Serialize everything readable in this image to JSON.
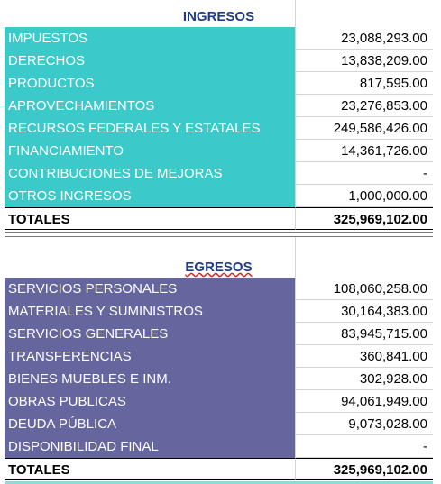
{
  "ingresos": {
    "title": "INGRESOS",
    "rows": [
      [
        "IMPUESTOS",
        "23,088,293.00"
      ],
      [
        "DERECHOS",
        "13,838,209.00"
      ],
      [
        "PRODUCTOS",
        "817,595.00"
      ],
      [
        "APROVECHAMIENTOS",
        "23,276,853.00"
      ],
      [
        "RECURSOS FEDERALES Y ESTATALES",
        "249,586,426.00"
      ],
      [
        "FINANCIAMIENTO",
        "14,361,726.00"
      ],
      [
        "CONTRIBUCIONES DE MEJORAS",
        "-"
      ],
      [
        "OTROS INGRESOS",
        "1,000,000.00"
      ]
    ],
    "total": [
      "TOTALES",
      "325,969,102.00"
    ]
  },
  "egresos": {
    "title": "EGRESOS",
    "rows": [
      [
        "SERVICIOS PERSONALES",
        "108,060,258.00"
      ],
      [
        "MATERIALES Y SUMINISTROS",
        "30,164,383.00"
      ],
      [
        "SERVICIOS GENERALES",
        "83,945,715.00"
      ],
      [
        "TRANSFERENCIAS",
        "360,841.00"
      ],
      [
        "BIENES MUEBLES E INM.",
        "302,928.00"
      ],
      [
        "OBRAS PUBLICAS",
        "94,061,949.00"
      ],
      [
        "DEUDA PÚBLICA",
        "9,073,028.00"
      ],
      [
        "DISPONIBILIDAD FINAL",
        "-"
      ]
    ],
    "total": [
      "TOTALES",
      "325,969,102.00"
    ]
  }
}
